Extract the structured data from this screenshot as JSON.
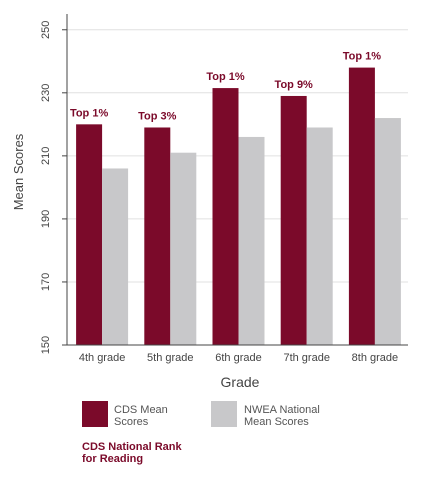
{
  "chart_data": {
    "type": "bar",
    "categories": [
      "4th grade",
      "5th grade",
      "6th grade",
      "7th grade",
      "8th grade"
    ],
    "series": [
      {
        "name": "CDS Mean Scores",
        "color": "#7b0a2a",
        "values": [
          220,
          219,
          231.5,
          229,
          238
        ]
      },
      {
        "name": "NWEA National Mean Scores",
        "color": "#c8c8ca",
        "values": [
          206,
          211,
          216,
          219,
          222
        ]
      }
    ],
    "bar_annotations": [
      "Top 1%",
      "Top 3%",
      "Top 1%",
      "Top 9%",
      "Top 1%"
    ],
    "title": "",
    "xlabel": "Grade",
    "ylabel": "Mean Scores",
    "ylim": [
      150,
      255
    ],
    "yticks": [
      150,
      170,
      190,
      210,
      230,
      250
    ],
    "grid": true,
    "legend_position": "bottom"
  },
  "legend": {
    "cds_line1": "CDS Mean",
    "cds_line2": "Scores",
    "nwea_line1": "NWEA National",
    "nwea_line2": "Mean Scores"
  },
  "note": {
    "line1": "CDS National Rank",
    "line2": "for Reading",
    "color": "#7b0a2a"
  }
}
